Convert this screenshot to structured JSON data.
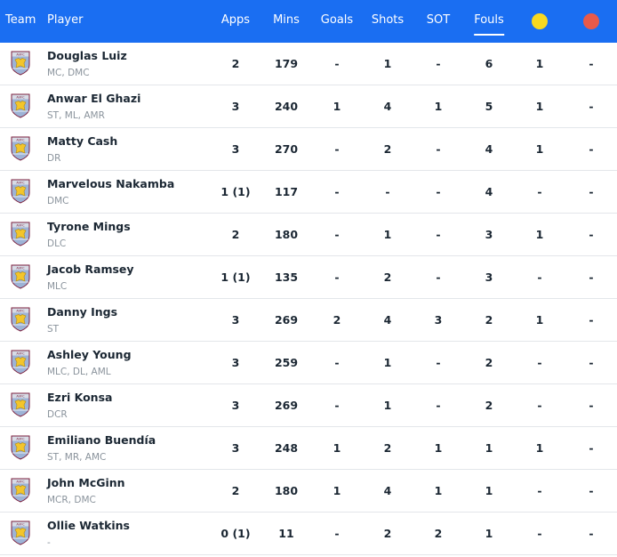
{
  "header": {
    "team": "Team",
    "player": "Player",
    "apps": "Apps",
    "mins": "Mins",
    "goals": "Goals",
    "shots": "Shots",
    "sot": "SOT",
    "fouls": "Fouls",
    "active_sort": "Fouls",
    "yellow_card_color": "#f8d921",
    "red_card_color": "#e85a4a",
    "header_color": "#1a6ef2"
  },
  "team_badge_icon": "aston-villa-crest-icon",
  "players": [
    {
      "name": "Douglas Luiz",
      "positions": "MC, DMC",
      "apps": "2",
      "mins": "179",
      "goals": "-",
      "shots": "1",
      "sot": "-",
      "fouls": "6",
      "yellow": "1",
      "red": "-"
    },
    {
      "name": "Anwar El Ghazi",
      "positions": "ST, ML, AMR",
      "apps": "3",
      "mins": "240",
      "goals": "1",
      "shots": "4",
      "sot": "1",
      "fouls": "5",
      "yellow": "1",
      "red": "-"
    },
    {
      "name": "Matty Cash",
      "positions": "DR",
      "apps": "3",
      "mins": "270",
      "goals": "-",
      "shots": "2",
      "sot": "-",
      "fouls": "4",
      "yellow": "1",
      "red": "-"
    },
    {
      "name": "Marvelous Nakamba",
      "positions": "DMC",
      "apps": "1 (1)",
      "mins": "117",
      "goals": "-",
      "shots": "-",
      "sot": "-",
      "fouls": "4",
      "yellow": "-",
      "red": "-"
    },
    {
      "name": "Tyrone Mings",
      "positions": "DLC",
      "apps": "2",
      "mins": "180",
      "goals": "-",
      "shots": "1",
      "sot": "-",
      "fouls": "3",
      "yellow": "1",
      "red": "-"
    },
    {
      "name": "Jacob Ramsey",
      "positions": "MLC",
      "apps": "1 (1)",
      "mins": "135",
      "goals": "-",
      "shots": "2",
      "sot": "-",
      "fouls": "3",
      "yellow": "-",
      "red": "-"
    },
    {
      "name": "Danny Ings",
      "positions": "ST",
      "apps": "3",
      "mins": "269",
      "goals": "2",
      "shots": "4",
      "sot": "3",
      "fouls": "2",
      "yellow": "1",
      "red": "-"
    },
    {
      "name": "Ashley Young",
      "positions": "MLC, DL, AML",
      "apps": "3",
      "mins": "259",
      "goals": "-",
      "shots": "1",
      "sot": "-",
      "fouls": "2",
      "yellow": "-",
      "red": "-"
    },
    {
      "name": "Ezri Konsa",
      "positions": "DCR",
      "apps": "3",
      "mins": "269",
      "goals": "-",
      "shots": "1",
      "sot": "-",
      "fouls": "2",
      "yellow": "-",
      "red": "-"
    },
    {
      "name": "Emiliano Buendía",
      "positions": "ST, MR, AMC",
      "apps": "3",
      "mins": "248",
      "goals": "1",
      "shots": "2",
      "sot": "1",
      "fouls": "1",
      "yellow": "1",
      "red": "-"
    },
    {
      "name": "John McGinn",
      "positions": "MCR, DMC",
      "apps": "2",
      "mins": "180",
      "goals": "1",
      "shots": "4",
      "sot": "1",
      "fouls": "1",
      "yellow": "-",
      "red": "-"
    },
    {
      "name": "Ollie Watkins",
      "positions": "-",
      "apps": "0 (1)",
      "mins": "11",
      "goals": "-",
      "shots": "2",
      "sot": "2",
      "fouls": "1",
      "yellow": "-",
      "red": "-"
    }
  ]
}
